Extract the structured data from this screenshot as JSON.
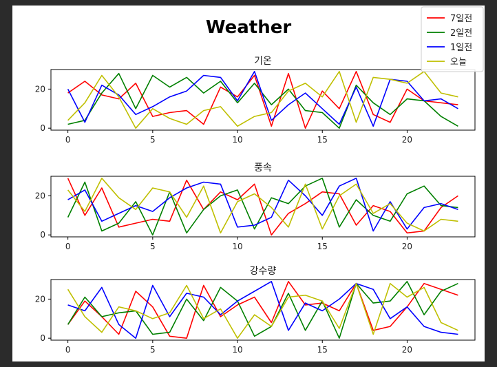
{
  "title": "Weather",
  "colors": {
    "background": "#2b2b2b",
    "figure": "#ffffff"
  },
  "legend": {
    "placement": "top-right",
    "entries": [
      "7일전",
      "2일전",
      "1일전",
      "오늘"
    ]
  },
  "chart_data": [
    {
      "type": "line",
      "title": "기온",
      "xlim": [
        -1,
        24
      ],
      "ylim": [
        -1,
        30
      ],
      "xticks": [
        0,
        5,
        10,
        15,
        20
      ],
      "yticks": [
        0,
        20
      ],
      "x": [
        0,
        1,
        2,
        3,
        4,
        5,
        6,
        7,
        8,
        9,
        10,
        11,
        12,
        13,
        14,
        15,
        16,
        17,
        18,
        19,
        20,
        21,
        22,
        23
      ],
      "series": [
        {
          "name": "7일전",
          "color": "#ff0000",
          "values": [
            18,
            24,
            17,
            15,
            23,
            6,
            8,
            9,
            2,
            21,
            16,
            27,
            1,
            28,
            0,
            19,
            10,
            29,
            7,
            3,
            20,
            14,
            13,
            12
          ]
        },
        {
          "name": "2일전",
          "color": "#008000",
          "values": [
            2,
            4,
            18,
            28,
            10,
            27,
            21,
            26,
            18,
            24,
            13,
            23,
            12,
            20,
            9,
            8,
            0,
            22,
            13,
            7,
            15,
            14,
            6,
            1
          ]
        },
        {
          "name": "1일전",
          "color": "#0000ff",
          "values": [
            20,
            3,
            22,
            17,
            7,
            11,
            16,
            19,
            27,
            26,
            14,
            29,
            4,
            12,
            18,
            10,
            2,
            21,
            1,
            25,
            24,
            14,
            15,
            10
          ]
        },
        {
          "name": "오늘",
          "color": "#bfbf00",
          "values": [
            4,
            13,
            27,
            16,
            0,
            10,
            5,
            2,
            9,
            11,
            1,
            6,
            8,
            19,
            23,
            16,
            29,
            3,
            26,
            25,
            23,
            29,
            18,
            16
          ]
        }
      ]
    },
    {
      "type": "line",
      "title": "풍속",
      "xlim": [
        -1,
        24
      ],
      "ylim": [
        -1,
        30
      ],
      "xticks": [
        0,
        5,
        10,
        15,
        20
      ],
      "yticks": [
        0,
        20
      ],
      "x": [
        0,
        1,
        2,
        3,
        4,
        5,
        6,
        7,
        8,
        9,
        10,
        11,
        12,
        13,
        14,
        15,
        16,
        17,
        18,
        19,
        20,
        21,
        22,
        23
      ],
      "series": [
        {
          "name": "7일전",
          "color": "#ff0000",
          "values": [
            29,
            10,
            24,
            4,
            6,
            8,
            7,
            28,
            13,
            22,
            18,
            26,
            0,
            11,
            16,
            22,
            21,
            5,
            15,
            12,
            1,
            2,
            14,
            20
          ]
        },
        {
          "name": "2일전",
          "color": "#008000",
          "values": [
            9,
            27,
            2,
            6,
            17,
            0,
            22,
            1,
            13,
            20,
            23,
            3,
            19,
            16,
            25,
            29,
            4,
            18,
            10,
            7,
            21,
            25,
            15,
            14
          ]
        },
        {
          "name": "1일전",
          "color": "#0000ff",
          "values": [
            18,
            23,
            7,
            11,
            15,
            12,
            19,
            24,
            27,
            26,
            4,
            5,
            9,
            28,
            20,
            10,
            25,
            29,
            2,
            17,
            3,
            14,
            16,
            13
          ]
        },
        {
          "name": "오늘",
          "color": "#bfbf00",
          "values": [
            23,
            12,
            29,
            19,
            13,
            24,
            22,
            9,
            25,
            1,
            17,
            21,
            14,
            4,
            26,
            3,
            20,
            26,
            11,
            16,
            6,
            2,
            8,
            7
          ]
        }
      ]
    },
    {
      "type": "line",
      "title": "강수량",
      "xlim": [
        -1,
        24
      ],
      "ylim": [
        -1,
        30
      ],
      "xticks": [
        0,
        5,
        10,
        15,
        20
      ],
      "yticks": [
        0,
        20
      ],
      "x": [
        0,
        1,
        2,
        3,
        4,
        5,
        6,
        7,
        8,
        9,
        10,
        11,
        12,
        13,
        14,
        15,
        16,
        17,
        18,
        19,
        20,
        21,
        22,
        23
      ],
      "series": [
        {
          "name": "7일전",
          "color": "#ff0000",
          "values": [
            7,
            19,
            11,
            2,
            24,
            16,
            1,
            0,
            27,
            11,
            17,
            21,
            8,
            29,
            17,
            18,
            14,
            28,
            4,
            6,
            16,
            28,
            25,
            22
          ]
        },
        {
          "name": "2일전",
          "color": "#008000",
          "values": [
            7,
            21,
            11,
            13,
            14,
            2,
            3,
            20,
            9,
            26,
            19,
            1,
            6,
            23,
            4,
            19,
            0,
            28,
            18,
            19,
            29,
            12,
            24,
            28
          ]
        },
        {
          "name": "1일전",
          "color": "#0000ff",
          "values": [
            17,
            14,
            26,
            7,
            0,
            27,
            11,
            23,
            21,
            12,
            19,
            24,
            29,
            4,
            18,
            14,
            20,
            28,
            25,
            10,
            16,
            6,
            3,
            2
          ]
        },
        {
          "name": "오늘",
          "color": "#bfbf00",
          "values": [
            25,
            11,
            3,
            16,
            14,
            10,
            13,
            27,
            10,
            15,
            0,
            12,
            6,
            21,
            22,
            19,
            5,
            28,
            2,
            28,
            21,
            26,
            8,
            4
          ]
        }
      ]
    }
  ]
}
